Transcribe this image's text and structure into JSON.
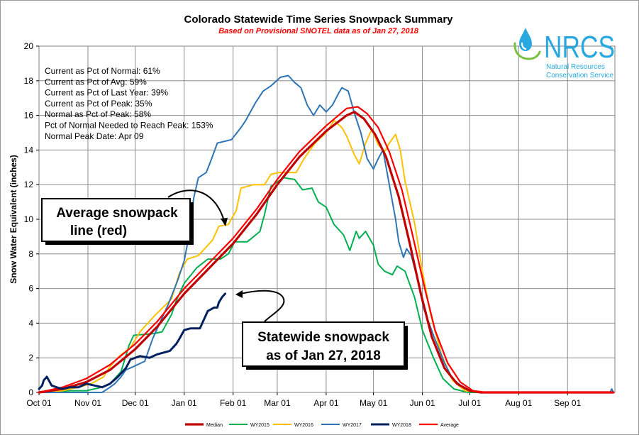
{
  "chart_data": {
    "type": "line",
    "title": "Colorado Statewide Time Series Snowpack Summary",
    "subtitle": "Based on Provisional SNOTEL data as of Jan 27, 2018",
    "ylabel": "Snow Water Equivalent (inches)",
    "xlabel": "",
    "ylim": [
      0,
      20
    ],
    "yticks": [
      "0",
      "2",
      "4",
      "6",
      "8",
      "10",
      "12",
      "14",
      "16",
      "18",
      "20"
    ],
    "xticks": [
      "Oct 01",
      "Nov 01",
      "Dec 01",
      "Jan 01",
      "Feb 01",
      "Mar 01",
      "Apr 01",
      "May 01",
      "Jun 01",
      "Jul 01",
      "Aug 01",
      "Sep 01"
    ],
    "grid": true,
    "legend_position": "bottom",
    "stats": [
      "Current  as Pct of Normal: 61%",
      "Current  as Pct of Avg: 59%",
      "Current  as Pct of Last Year: 39%",
      "Current  as Pct of Peak: 35%",
      "Normal as Pct of Peak: 58%",
      "Pct of Normal Needed  to Reach Peak: 153%",
      "Normal Peak Date: Apr 09"
    ],
    "annotations": {
      "average": [
        "Average snowpack",
        "line (red)"
      ],
      "current": [
        "Statewide snowpack",
        "as of Jan 27, 2018"
      ]
    },
    "logo": {
      "text": "NRCS",
      "line1": "Natural Resources",
      "line2": "Conservation Service"
    },
    "series": [
      {
        "name": "Median",
        "color": "#c00000",
        "width": 3.2,
        "points": [
          [
            0,
            0
          ],
          [
            15,
            0.2
          ],
          [
            30,
            0.6
          ],
          [
            45,
            1.3
          ],
          [
            61,
            2.5
          ],
          [
            75,
            3.8
          ],
          [
            92,
            5.7
          ],
          [
            107,
            7.1
          ],
          [
            123,
            8.6
          ],
          [
            138,
            10.3
          ],
          [
            151,
            12.0
          ],
          [
            165,
            13.6
          ],
          [
            182,
            15.1
          ],
          [
            195,
            16.0
          ],
          [
            200,
            16.2
          ],
          [
            206,
            15.8
          ],
          [
            213,
            14.9
          ],
          [
            220,
            13.6
          ],
          [
            228,
            11.3
          ],
          [
            235,
            8.6
          ],
          [
            242,
            5.7
          ],
          [
            249,
            3.2
          ],
          [
            257,
            1.4
          ],
          [
            265,
            0.5
          ],
          [
            273,
            0.1
          ],
          [
            280,
            0
          ],
          [
            364,
            0
          ]
        ]
      },
      {
        "name": "WY2015",
        "color": "#00b050",
        "width": 2,
        "points": [
          [
            0,
            0
          ],
          [
            20,
            0.1
          ],
          [
            30,
            0.1
          ],
          [
            40,
            0.3
          ],
          [
            45,
            0.5
          ],
          [
            52,
            1.2
          ],
          [
            57,
            2.7
          ],
          [
            60,
            3.3
          ],
          [
            73,
            3.4
          ],
          [
            78,
            3.5
          ],
          [
            84,
            4.5
          ],
          [
            87,
            5.3
          ],
          [
            92,
            6.3
          ],
          [
            100,
            7.2
          ],
          [
            107,
            7.7
          ],
          [
            115,
            7.7
          ],
          [
            120,
            8.0
          ],
          [
            124,
            8.7
          ],
          [
            132,
            8.7
          ],
          [
            140,
            9.3
          ],
          [
            143,
            10.3
          ],
          [
            147,
            11.9
          ],
          [
            155,
            12.4
          ],
          [
            162,
            12.3
          ],
          [
            167,
            11.7
          ],
          [
            173,
            11.8
          ],
          [
            177,
            11.0
          ],
          [
            182,
            10.7
          ],
          [
            187,
            9.7
          ],
          [
            193,
            9.1
          ],
          [
            197,
            8.2
          ],
          [
            201,
            9.3
          ],
          [
            203,
            8.9
          ],
          [
            207,
            9.3
          ],
          [
            212,
            8.5
          ],
          [
            215,
            7.4
          ],
          [
            219,
            7.0
          ],
          [
            224,
            6.8
          ],
          [
            227,
            7.3
          ],
          [
            232,
            7.0
          ],
          [
            238,
            5.5
          ],
          [
            243,
            3.6
          ],
          [
            250,
            2.0
          ],
          [
            256,
            0.8
          ],
          [
            263,
            0.2
          ],
          [
            272,
            0
          ],
          [
            364,
            0
          ]
        ]
      },
      {
        "name": "WY2016",
        "color": "#ffc000",
        "width": 2,
        "points": [
          [
            0,
            0
          ],
          [
            15,
            0.1
          ],
          [
            25,
            0.3
          ],
          [
            33,
            0.5
          ],
          [
            41,
            0.9
          ],
          [
            45,
            1.5
          ],
          [
            51,
            2.1
          ],
          [
            58,
            2.6
          ],
          [
            64,
            3.5
          ],
          [
            73,
            4.4
          ],
          [
            84,
            5.4
          ],
          [
            89,
            6.9
          ],
          [
            94,
            7.7
          ],
          [
            101,
            7.9
          ],
          [
            110,
            8.8
          ],
          [
            114,
            9.6
          ],
          [
            120,
            9.7
          ],
          [
            125,
            10.5
          ],
          [
            128,
            11.8
          ],
          [
            136,
            12.0
          ],
          [
            143,
            12.0
          ],
          [
            147,
            12.6
          ],
          [
            152,
            12.7
          ],
          [
            163,
            12.7
          ],
          [
            168,
            13.5
          ],
          [
            175,
            14.4
          ],
          [
            182,
            15.0
          ],
          [
            187,
            15.7
          ],
          [
            192,
            15.3
          ],
          [
            195,
            14.8
          ],
          [
            200,
            13.7
          ],
          [
            203,
            13.2
          ],
          [
            207,
            14.4
          ],
          [
            211,
            15.2
          ],
          [
            215,
            14.3
          ],
          [
            219,
            13.9
          ],
          [
            222,
            14.4
          ],
          [
            226,
            14.9
          ],
          [
            229,
            14.0
          ],
          [
            232,
            12.2
          ],
          [
            238,
            9.8
          ],
          [
            243,
            7.0
          ],
          [
            248,
            4.6
          ],
          [
            255,
            2.2
          ],
          [
            262,
            0.7
          ],
          [
            270,
            0.1
          ],
          [
            280,
            0
          ],
          [
            364,
            0
          ]
        ]
      },
      {
        "name": "WY2017",
        "color": "#2e75b6",
        "width": 2,
        "points": [
          [
            0,
            0
          ],
          [
            30,
            0
          ],
          [
            40,
            0
          ],
          [
            45,
            0.3
          ],
          [
            48,
            0.5
          ],
          [
            52,
            0.9
          ],
          [
            55,
            1.3
          ],
          [
            60,
            1.5
          ],
          [
            67,
            1.8
          ],
          [
            72,
            3.1
          ],
          [
            78,
            4.3
          ],
          [
            82,
            5.1
          ],
          [
            85,
            5.8
          ],
          [
            88,
            6.5
          ],
          [
            92,
            7.6
          ],
          [
            95,
            9.0
          ],
          [
            98,
            11.2
          ],
          [
            101,
            12.4
          ],
          [
            106,
            12.7
          ],
          [
            109,
            13.4
          ],
          [
            113,
            14.4
          ],
          [
            122,
            14.6
          ],
          [
            128,
            15.3
          ],
          [
            131,
            15.7
          ],
          [
            137,
            16.7
          ],
          [
            142,
            17.4
          ],
          [
            147,
            17.7
          ],
          [
            153,
            18.2
          ],
          [
            158,
            18.3
          ],
          [
            162,
            17.9
          ],
          [
            166,
            17.6
          ],
          [
            170,
            16.6
          ],
          [
            174,
            16.0
          ],
          [
            178,
            16.6
          ],
          [
            182,
            16.2
          ],
          [
            186,
            16.6
          ],
          [
            190,
            17.3
          ],
          [
            192,
            17.6
          ],
          [
            196,
            17.4
          ],
          [
            200,
            16.1
          ],
          [
            204,
            15.0
          ],
          [
            208,
            13.5
          ],
          [
            212,
            12.9
          ],
          [
            215,
            13.5
          ],
          [
            218,
            14.0
          ],
          [
            222,
            12.0
          ],
          [
            226,
            10.0
          ],
          [
            228,
            8.7
          ],
          [
            231,
            7.8
          ],
          [
            233,
            8.3
          ],
          [
            236,
            7.9
          ],
          [
            240,
            6.5
          ],
          [
            244,
            4.8
          ],
          [
            250,
            3.3
          ],
          [
            257,
            1.7
          ],
          [
            262,
            0.8
          ],
          [
            270,
            0.2
          ],
          [
            280,
            0
          ],
          [
            362,
            0
          ],
          [
            363,
            0.2
          ],
          [
            364,
            0
          ]
        ]
      },
      {
        "name": "WY2018",
        "color": "#002060",
        "width": 3,
        "points": [
          [
            0,
            0.2
          ],
          [
            2,
            0.4
          ],
          [
            3,
            0.7
          ],
          [
            5,
            0.9
          ],
          [
            8,
            0.4
          ],
          [
            11,
            0.3
          ],
          [
            15,
            0.2
          ],
          [
            20,
            0.3
          ],
          [
            25,
            0.3
          ],
          [
            30,
            0.5
          ],
          [
            35,
            0.4
          ],
          [
            40,
            0.3
          ],
          [
            45,
            0.5
          ],
          [
            50,
            0.9
          ],
          [
            55,
            1.4
          ],
          [
            58,
            1.9
          ],
          [
            64,
            2.1
          ],
          [
            70,
            2.0
          ],
          [
            75,
            2.2
          ],
          [
            83,
            2.4
          ],
          [
            87,
            2.8
          ],
          [
            89,
            3.1
          ],
          [
            92,
            3.6
          ],
          [
            96,
            3.7
          ],
          [
            102,
            3.7
          ],
          [
            107,
            4.7
          ],
          [
            111,
            4.9
          ],
          [
            113,
            4.9
          ],
          [
            114,
            5.2
          ],
          [
            116,
            5.5
          ],
          [
            118,
            5.7
          ]
        ]
      },
      {
        "name": "Average",
        "color": "#ff0000",
        "width": 2.2,
        "points": [
          [
            0,
            0
          ],
          [
            15,
            0.3
          ],
          [
            30,
            0.8
          ],
          [
            45,
            1.6
          ],
          [
            61,
            2.8
          ],
          [
            75,
            4.1
          ],
          [
            92,
            6.0
          ],
          [
            107,
            7.4
          ],
          [
            123,
            8.9
          ],
          [
            138,
            10.6
          ],
          [
            151,
            12.3
          ],
          [
            165,
            13.9
          ],
          [
            182,
            15.4
          ],
          [
            195,
            16.4
          ],
          [
            202,
            16.5
          ],
          [
            208,
            16.1
          ],
          [
            215,
            15.3
          ],
          [
            222,
            13.9
          ],
          [
            230,
            11.7
          ],
          [
            237,
            9.0
          ],
          [
            244,
            6.2
          ],
          [
            251,
            3.6
          ],
          [
            259,
            1.7
          ],
          [
            267,
            0.6
          ],
          [
            275,
            0.1
          ],
          [
            283,
            0
          ],
          [
            364,
            0
          ]
        ]
      }
    ]
  }
}
